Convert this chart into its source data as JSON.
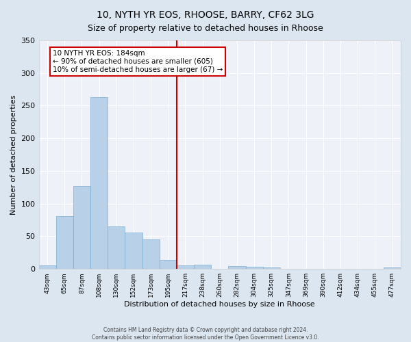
{
  "title": "10, NYTH YR EOS, RHOOSE, BARRY, CF62 3LG",
  "subtitle": "Size of property relative to detached houses in Rhoose",
  "xlabel": "Distribution of detached houses by size in Rhoose",
  "ylabel": "Number of detached properties",
  "bar_color": "#b8d0e8",
  "bar_edge_color": "#7aafd4",
  "background_color": "#eef2f8",
  "fig_background_color": "#dce6f0",
  "grid_color": "#ffffff",
  "annotation_box_color": "#cc0000",
  "vline_color": "#cc0000",
  "categories": [
    "43sqm",
    "65sqm",
    "87sqm",
    "108sqm",
    "130sqm",
    "152sqm",
    "173sqm",
    "195sqm",
    "217sqm",
    "238sqm",
    "260sqm",
    "282sqm",
    "304sqm",
    "325sqm",
    "347sqm",
    "369sqm",
    "390sqm",
    "412sqm",
    "434sqm",
    "455sqm",
    "477sqm"
  ],
  "values": [
    5,
    81,
    127,
    263,
    65,
    56,
    45,
    14,
    5,
    6,
    0,
    4,
    3,
    2,
    0,
    0,
    0,
    0,
    0,
    0,
    2
  ],
  "vline_x": 7.5,
  "annotation_line1": "10 NYTH YR EOS: 184sqm",
  "annotation_line2": "← 90% of detached houses are smaller (605)",
  "annotation_line3": "10% of semi-detached houses are larger (67) →",
  "ylim": [
    0,
    350
  ],
  "yticks": [
    0,
    50,
    100,
    150,
    200,
    250,
    300,
    350
  ],
  "footer_line1": "Contains HM Land Registry data © Crown copyright and database right 2024.",
  "footer_line2": "Contains public sector information licensed under the Open Government Licence v3.0."
}
